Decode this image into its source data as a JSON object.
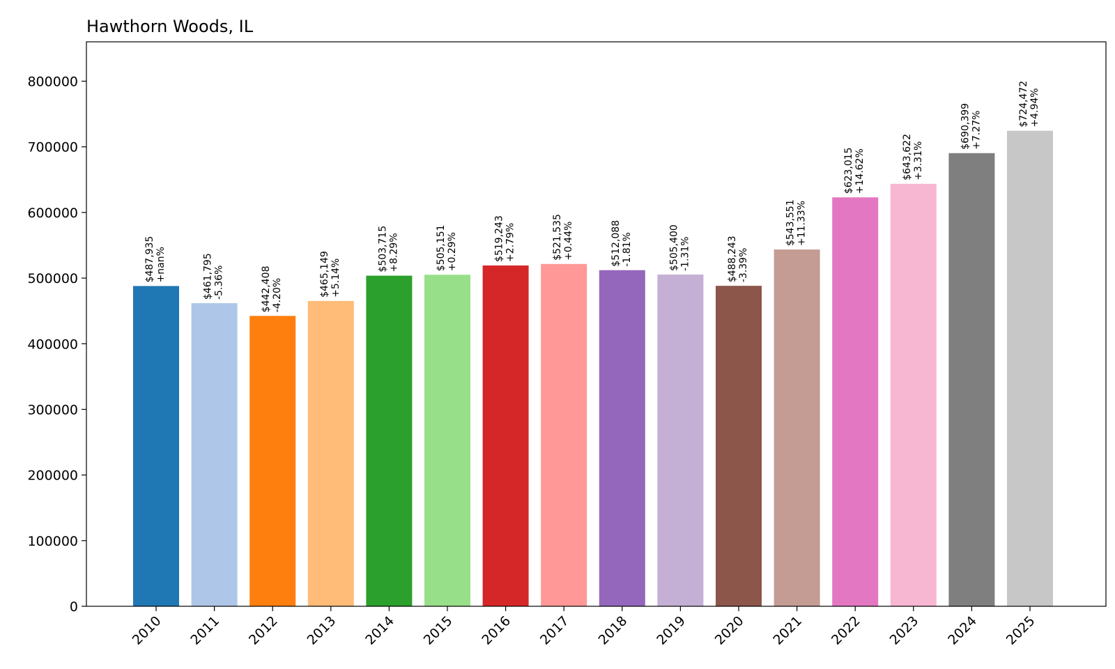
{
  "chart_data": {
    "type": "bar",
    "title": "Hawthorn Woods, IL",
    "xlabel": "",
    "ylabel": "",
    "ylim": [
      0,
      860000
    ],
    "yticks": [
      0,
      100000,
      200000,
      300000,
      400000,
      500000,
      600000,
      700000,
      800000
    ],
    "ytick_labels": [
      "0",
      "100000",
      "200000",
      "300000",
      "400000",
      "500000",
      "600000",
      "700000",
      "800000"
    ],
    "grid": false,
    "legend": "none",
    "categories": [
      "2010",
      "2011",
      "2012",
      "2013",
      "2014",
      "2015",
      "2016",
      "2017",
      "2018",
      "2019",
      "2020",
      "2021",
      "2022",
      "2023",
      "2024",
      "2025"
    ],
    "values": [
      487935,
      461795,
      442408,
      465149,
      503715,
      505151,
      519243,
      521535,
      512088,
      505400,
      488243,
      543551,
      623015,
      643622,
      690399,
      724472
    ],
    "value_labels": [
      "$487,935",
      "$461,795",
      "$442,408",
      "$465,149",
      "$503,715",
      "$505,151",
      "$519,243",
      "$521,535",
      "$512,088",
      "$505,400",
      "$488,243",
      "$543,551",
      "$623,015",
      "$643,622",
      "$690,399",
      "$724,472"
    ],
    "change_labels": [
      "+nan%",
      "-5.36%",
      "-4.20%",
      "+5.14%",
      "+8.29%",
      "+0.29%",
      "+2.79%",
      "+0.44%",
      "-1.81%",
      "-1.31%",
      "-3.39%",
      "+11.33%",
      "+14.62%",
      "+3.31%",
      "+7.27%",
      "+4.94%"
    ],
    "colors": [
      "#1f77b4",
      "#aec7e8",
      "#ff7f0e",
      "#ffbb78",
      "#2ca02c",
      "#98df8a",
      "#d62728",
      "#ff9896",
      "#9467bd",
      "#c5b0d5",
      "#8c564b",
      "#c49c94",
      "#e377c2",
      "#f7b6d2",
      "#7f7f7f",
      "#c7c7c7"
    ]
  }
}
